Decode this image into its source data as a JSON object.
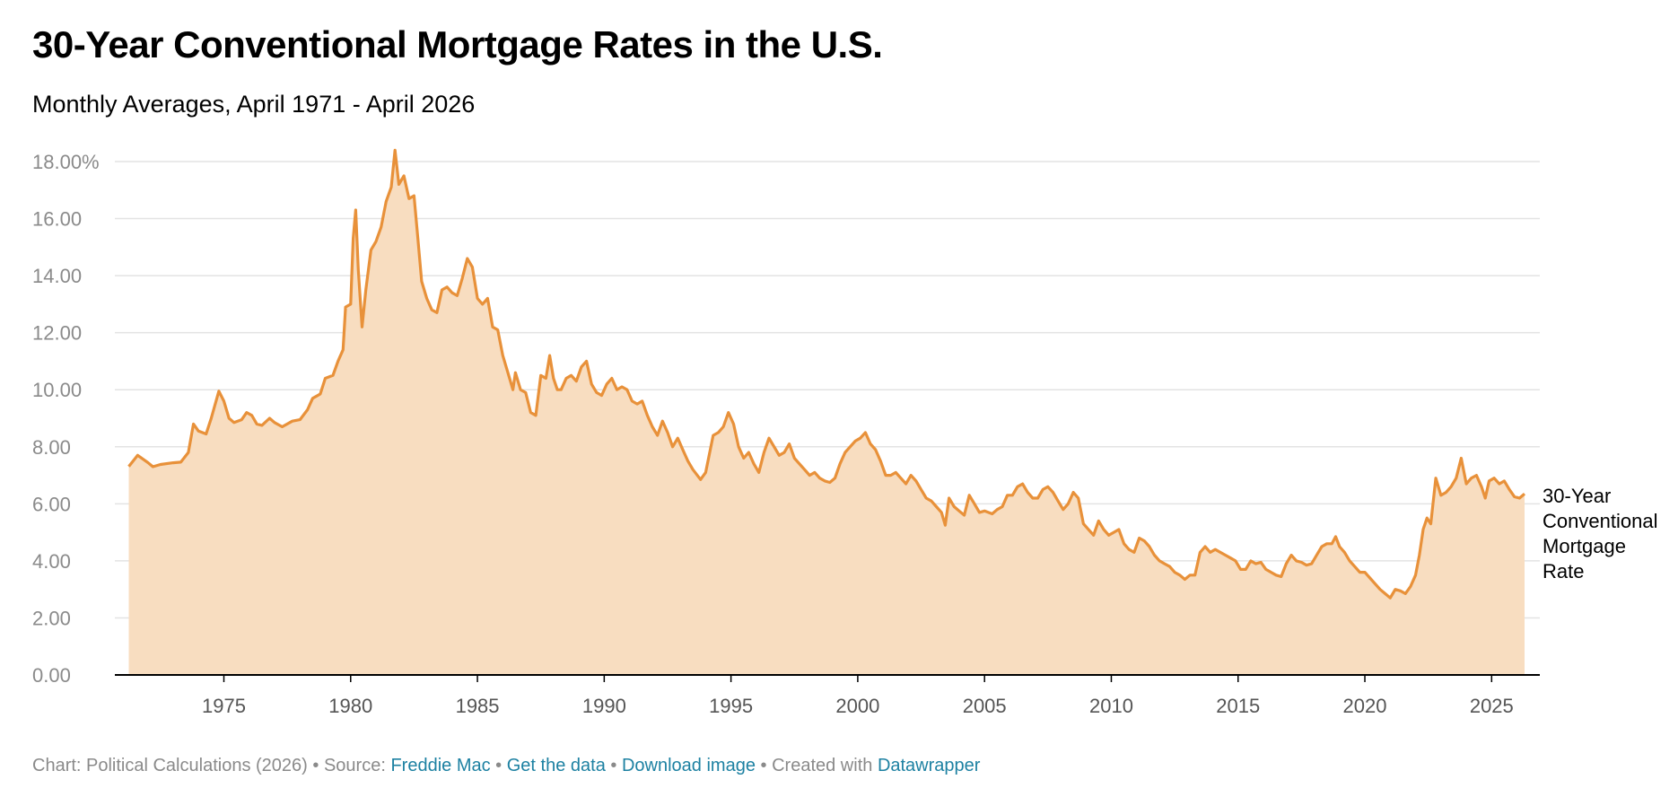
{
  "header": {
    "title": "30-Year Conventional Mortgage Rates in the U.S.",
    "subtitle": "Monthly Averages, April 1971 - April 2026"
  },
  "footer": {
    "chart_credit": "Chart: Political Calculations (2026)",
    "source_prefix": "Source:",
    "source_link": "Freddie Mac",
    "get_data": "Get the data",
    "download": "Download image",
    "created_prefix": "Created with",
    "created_link": "Datawrapper",
    "separator": "•"
  },
  "colors": {
    "line": "#e8913a",
    "area": "#f8ddc0",
    "grid": "#e3e3e3",
    "axis": "#000000",
    "link": "#1d81a2",
    "footer_text": "#8a8a8a"
  },
  "chart_data": {
    "type": "area",
    "title": "30-Year Conventional Mortgage Rates in the U.S.",
    "subtitle": "Monthly Averages, April 1971 - April 2026",
    "ylim": [
      0,
      18
    ],
    "xlim": [
      1970.7,
      2026.9
    ],
    "y_ticks": [
      {
        "value": 0,
        "label": "0.00"
      },
      {
        "value": 2,
        "label": "2.00"
      },
      {
        "value": 4,
        "label": "4.00"
      },
      {
        "value": 6,
        "label": "6.00"
      },
      {
        "value": 8,
        "label": "8.00"
      },
      {
        "value": 10,
        "label": "10.00"
      },
      {
        "value": 12,
        "label": "12.00"
      },
      {
        "value": 14,
        "label": "14.00"
      },
      {
        "value": 16,
        "label": "16.00"
      },
      {
        "value": 18,
        "label": "18.00%"
      }
    ],
    "x_ticks": [
      {
        "value": 1975,
        "label": "1975"
      },
      {
        "value": 1980,
        "label": "1980"
      },
      {
        "value": 1985,
        "label": "1985"
      },
      {
        "value": 1990,
        "label": "1990"
      },
      {
        "value": 1995,
        "label": "1995"
      },
      {
        "value": 2000,
        "label": "2000"
      },
      {
        "value": 2005,
        "label": "2005"
      },
      {
        "value": 2010,
        "label": "2010"
      },
      {
        "value": 2015,
        "label": "2015"
      },
      {
        "value": 2020,
        "label": "2020"
      },
      {
        "value": 2025,
        "label": "2025"
      }
    ],
    "grid": true,
    "series": [
      {
        "name": "30-Year Conventional Mortgage Rate",
        "label_lines": [
          "30-Year",
          "Conventional",
          "Mortgage",
          "Rate"
        ],
        "points": [
          [
            1971.25,
            7.31
          ],
          [
            1971.6,
            7.7
          ],
          [
            1972.0,
            7.45
          ],
          [
            1972.2,
            7.3
          ],
          [
            1972.5,
            7.38
          ],
          [
            1973.0,
            7.44
          ],
          [
            1973.3,
            7.46
          ],
          [
            1973.6,
            7.8
          ],
          [
            1973.8,
            8.8
          ],
          [
            1974.0,
            8.55
          ],
          [
            1974.3,
            8.45
          ],
          [
            1974.5,
            9.0
          ],
          [
            1974.8,
            9.95
          ],
          [
            1975.0,
            9.6
          ],
          [
            1975.2,
            9.0
          ],
          [
            1975.4,
            8.85
          ],
          [
            1975.7,
            8.95
          ],
          [
            1975.9,
            9.2
          ],
          [
            1976.1,
            9.1
          ],
          [
            1976.3,
            8.8
          ],
          [
            1976.5,
            8.75
          ],
          [
            1976.8,
            9.0
          ],
          [
            1977.0,
            8.85
          ],
          [
            1977.3,
            8.7
          ],
          [
            1977.7,
            8.9
          ],
          [
            1978.0,
            8.95
          ],
          [
            1978.3,
            9.3
          ],
          [
            1978.5,
            9.7
          ],
          [
            1978.8,
            9.85
          ],
          [
            1979.0,
            10.4
          ],
          [
            1979.3,
            10.5
          ],
          [
            1979.5,
            11.0
          ],
          [
            1979.7,
            11.4
          ],
          [
            1979.8,
            12.9
          ],
          [
            1980.0,
            13.0
          ],
          [
            1980.1,
            15.3
          ],
          [
            1980.2,
            16.3
          ],
          [
            1980.3,
            14.2
          ],
          [
            1980.45,
            12.2
          ],
          [
            1980.6,
            13.5
          ],
          [
            1980.8,
            14.9
          ],
          [
            1981.0,
            15.2
          ],
          [
            1981.2,
            15.7
          ],
          [
            1981.4,
            16.6
          ],
          [
            1981.6,
            17.1
          ],
          [
            1981.75,
            18.4
          ],
          [
            1981.9,
            17.2
          ],
          [
            1982.1,
            17.5
          ],
          [
            1982.3,
            16.7
          ],
          [
            1982.5,
            16.8
          ],
          [
            1982.65,
            15.3
          ],
          [
            1982.8,
            13.8
          ],
          [
            1983.0,
            13.2
          ],
          [
            1983.2,
            12.8
          ],
          [
            1983.4,
            12.7
          ],
          [
            1983.6,
            13.5
          ],
          [
            1983.8,
            13.6
          ],
          [
            1984.0,
            13.4
          ],
          [
            1984.2,
            13.3
          ],
          [
            1984.4,
            13.9
          ],
          [
            1984.6,
            14.6
          ],
          [
            1984.8,
            14.3
          ],
          [
            1985.0,
            13.2
          ],
          [
            1985.2,
            13.0
          ],
          [
            1985.4,
            13.2
          ],
          [
            1985.6,
            12.2
          ],
          [
            1985.8,
            12.1
          ],
          [
            1986.0,
            11.2
          ],
          [
            1986.2,
            10.6
          ],
          [
            1986.4,
            10.0
          ],
          [
            1986.5,
            10.6
          ],
          [
            1986.7,
            10.0
          ],
          [
            1986.9,
            9.9
          ],
          [
            1987.1,
            9.2
          ],
          [
            1987.3,
            9.1
          ],
          [
            1987.5,
            10.5
          ],
          [
            1987.7,
            10.4
          ],
          [
            1987.85,
            11.2
          ],
          [
            1988.0,
            10.4
          ],
          [
            1988.15,
            10.0
          ],
          [
            1988.3,
            10.0
          ],
          [
            1988.5,
            10.4
          ],
          [
            1988.7,
            10.5
          ],
          [
            1988.9,
            10.3
          ],
          [
            1989.1,
            10.8
          ],
          [
            1989.3,
            11.0
          ],
          [
            1989.5,
            10.2
          ],
          [
            1989.7,
            9.9
          ],
          [
            1989.9,
            9.8
          ],
          [
            1990.1,
            10.2
          ],
          [
            1990.3,
            10.4
          ],
          [
            1990.5,
            10.0
          ],
          [
            1990.7,
            10.1
          ],
          [
            1990.9,
            10.0
          ],
          [
            1991.1,
            9.6
          ],
          [
            1991.3,
            9.5
          ],
          [
            1991.5,
            9.6
          ],
          [
            1991.7,
            9.1
          ],
          [
            1991.9,
            8.7
          ],
          [
            1992.1,
            8.4
          ],
          [
            1992.3,
            8.9
          ],
          [
            1992.5,
            8.5
          ],
          [
            1992.7,
            8.0
          ],
          [
            1992.9,
            8.3
          ],
          [
            1993.1,
            7.9
          ],
          [
            1993.3,
            7.5
          ],
          [
            1993.5,
            7.2
          ],
          [
            1993.8,
            6.85
          ],
          [
            1994.0,
            7.1
          ],
          [
            1994.3,
            8.4
          ],
          [
            1994.5,
            8.5
          ],
          [
            1994.7,
            8.7
          ],
          [
            1994.9,
            9.2
          ],
          [
            1995.1,
            8.8
          ],
          [
            1995.3,
            8.0
          ],
          [
            1995.5,
            7.6
          ],
          [
            1995.7,
            7.8
          ],
          [
            1995.9,
            7.4
          ],
          [
            1996.1,
            7.1
          ],
          [
            1996.3,
            7.8
          ],
          [
            1996.5,
            8.3
          ],
          [
            1996.7,
            8.0
          ],
          [
            1996.9,
            7.7
          ],
          [
            1997.1,
            7.8
          ],
          [
            1997.3,
            8.1
          ],
          [
            1997.5,
            7.6
          ],
          [
            1997.7,
            7.4
          ],
          [
            1997.9,
            7.2
          ],
          [
            1998.1,
            7.0
          ],
          [
            1998.3,
            7.1
          ],
          [
            1998.5,
            6.9
          ],
          [
            1998.7,
            6.8
          ],
          [
            1998.9,
            6.75
          ],
          [
            1999.1,
            6.9
          ],
          [
            1999.3,
            7.4
          ],
          [
            1999.5,
            7.8
          ],
          [
            1999.7,
            8.0
          ],
          [
            1999.9,
            8.2
          ],
          [
            2000.1,
            8.3
          ],
          [
            2000.3,
            8.5
          ],
          [
            2000.5,
            8.1
          ],
          [
            2000.7,
            7.9
          ],
          [
            2000.9,
            7.5
          ],
          [
            2001.1,
            7.0
          ],
          [
            2001.3,
            7.0
          ],
          [
            2001.5,
            7.1
          ],
          [
            2001.7,
            6.9
          ],
          [
            2001.9,
            6.7
          ],
          [
            2002.1,
            7.0
          ],
          [
            2002.3,
            6.8
          ],
          [
            2002.5,
            6.5
          ],
          [
            2002.7,
            6.2
          ],
          [
            2002.9,
            6.1
          ],
          [
            2003.1,
            5.9
          ],
          [
            2003.3,
            5.7
          ],
          [
            2003.45,
            5.25
          ],
          [
            2003.6,
            6.2
          ],
          [
            2003.8,
            5.9
          ],
          [
            2004.0,
            5.75
          ],
          [
            2004.2,
            5.6
          ],
          [
            2004.4,
            6.3
          ],
          [
            2004.6,
            6.0
          ],
          [
            2004.8,
            5.7
          ],
          [
            2005.0,
            5.75
          ],
          [
            2005.3,
            5.65
          ],
          [
            2005.5,
            5.8
          ],
          [
            2005.7,
            5.9
          ],
          [
            2005.9,
            6.3
          ],
          [
            2006.1,
            6.3
          ],
          [
            2006.3,
            6.6
          ],
          [
            2006.5,
            6.7
          ],
          [
            2006.7,
            6.4
          ],
          [
            2006.9,
            6.2
          ],
          [
            2007.1,
            6.2
          ],
          [
            2007.3,
            6.5
          ],
          [
            2007.5,
            6.6
          ],
          [
            2007.7,
            6.4
          ],
          [
            2007.9,
            6.1
          ],
          [
            2008.1,
            5.8
          ],
          [
            2008.3,
            6.0
          ],
          [
            2008.5,
            6.4
          ],
          [
            2008.7,
            6.2
          ],
          [
            2008.9,
            5.3
          ],
          [
            2009.1,
            5.1
          ],
          [
            2009.3,
            4.9
          ],
          [
            2009.5,
            5.4
          ],
          [
            2009.7,
            5.1
          ],
          [
            2009.9,
            4.9
          ],
          [
            2010.1,
            5.0
          ],
          [
            2010.3,
            5.1
          ],
          [
            2010.5,
            4.6
          ],
          [
            2010.7,
            4.4
          ],
          [
            2010.9,
            4.3
          ],
          [
            2011.1,
            4.8
          ],
          [
            2011.3,
            4.7
          ],
          [
            2011.5,
            4.5
          ],
          [
            2011.7,
            4.2
          ],
          [
            2011.9,
            4.0
          ],
          [
            2012.1,
            3.9
          ],
          [
            2012.3,
            3.8
          ],
          [
            2012.5,
            3.6
          ],
          [
            2012.7,
            3.5
          ],
          [
            2012.9,
            3.35
          ],
          [
            2013.1,
            3.5
          ],
          [
            2013.3,
            3.5
          ],
          [
            2013.5,
            4.3
          ],
          [
            2013.7,
            4.5
          ],
          [
            2013.9,
            4.3
          ],
          [
            2014.1,
            4.4
          ],
          [
            2014.3,
            4.3
          ],
          [
            2014.5,
            4.2
          ],
          [
            2014.7,
            4.1
          ],
          [
            2014.9,
            4.0
          ],
          [
            2015.1,
            3.7
          ],
          [
            2015.3,
            3.7
          ],
          [
            2015.5,
            4.0
          ],
          [
            2015.7,
            3.9
          ],
          [
            2015.9,
            3.95
          ],
          [
            2016.1,
            3.7
          ],
          [
            2016.3,
            3.6
          ],
          [
            2016.5,
            3.5
          ],
          [
            2016.7,
            3.45
          ],
          [
            2016.9,
            3.9
          ],
          [
            2017.1,
            4.2
          ],
          [
            2017.3,
            4.0
          ],
          [
            2017.5,
            3.95
          ],
          [
            2017.7,
            3.85
          ],
          [
            2017.9,
            3.9
          ],
          [
            2018.1,
            4.2
          ],
          [
            2018.3,
            4.5
          ],
          [
            2018.5,
            4.6
          ],
          [
            2018.7,
            4.6
          ],
          [
            2018.85,
            4.85
          ],
          [
            2019.0,
            4.5
          ],
          [
            2019.2,
            4.3
          ],
          [
            2019.4,
            4.0
          ],
          [
            2019.6,
            3.8
          ],
          [
            2019.8,
            3.6
          ],
          [
            2020.0,
            3.6
          ],
          [
            2020.2,
            3.4
          ],
          [
            2020.4,
            3.2
          ],
          [
            2020.6,
            3.0
          ],
          [
            2020.8,
            2.85
          ],
          [
            2021.0,
            2.7
          ],
          [
            2021.2,
            3.0
          ],
          [
            2021.4,
            2.95
          ],
          [
            2021.6,
            2.85
          ],
          [
            2021.8,
            3.1
          ],
          [
            2022.0,
            3.5
          ],
          [
            2022.15,
            4.2
          ],
          [
            2022.3,
            5.1
          ],
          [
            2022.45,
            5.5
          ],
          [
            2022.6,
            5.3
          ],
          [
            2022.8,
            6.9
          ],
          [
            2023.0,
            6.3
          ],
          [
            2023.2,
            6.4
          ],
          [
            2023.4,
            6.6
          ],
          [
            2023.6,
            6.9
          ],
          [
            2023.8,
            7.6
          ],
          [
            2024.0,
            6.7
          ],
          [
            2024.2,
            6.9
          ],
          [
            2024.4,
            7.0
          ],
          [
            2024.6,
            6.6
          ],
          [
            2024.75,
            6.2
          ],
          [
            2024.9,
            6.8
          ],
          [
            2025.1,
            6.9
          ],
          [
            2025.3,
            6.7
          ],
          [
            2025.5,
            6.8
          ],
          [
            2025.7,
            6.5
          ],
          [
            2025.9,
            6.25
          ],
          [
            2026.1,
            6.2
          ],
          [
            2026.3,
            6.35
          ]
        ]
      }
    ]
  }
}
